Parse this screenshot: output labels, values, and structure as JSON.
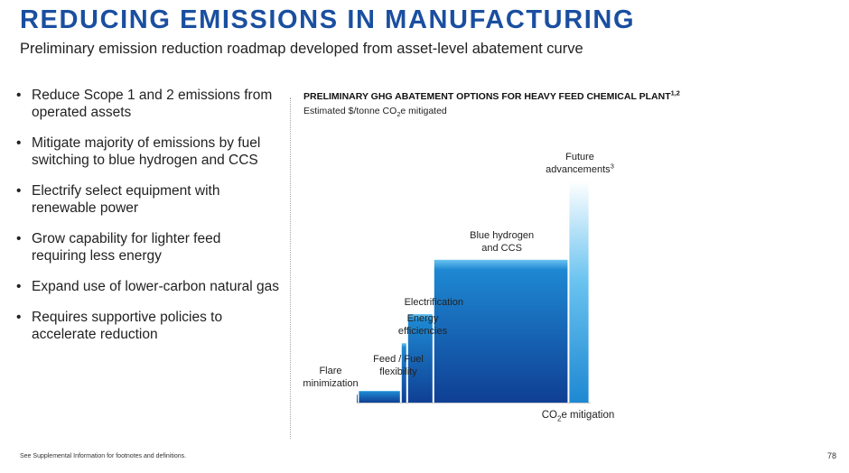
{
  "header": {
    "title": "REDUCING EMISSIONS IN MANUFACTURING",
    "subtitle": "Preliminary emission reduction roadmap developed from asset-level abatement curve"
  },
  "bullets": [
    [
      "Reduce Scope 1 and 2 emissions from",
      "operated assets"
    ],
    [
      "Mitigate majority of emissions by fuel",
      "switching to blue hydrogen and CCS"
    ],
    [
      "Electrify select equipment with",
      "renewable power"
    ],
    [
      "Grow capability for lighter feed",
      "requiring less energy"
    ],
    [
      "Expand use of lower-carbon natural gas"
    ],
    [
      "Requires supportive policies to",
      "accelerate reduction"
    ]
  ],
  "chart_data": {
    "type": "bar",
    "title": "PRELIMINARY GHG ABATEMENT OPTIONS FOR HEAVY FEED CHEMICAL PLANT",
    "title_sup": "1,2",
    "subtitle_pre": "Estimated $/tonne CO",
    "subtitle_sub": "2",
    "subtitle_post": "e mitigated",
    "xlabel_pre": "CO",
    "xlabel_sub": "2",
    "xlabel_post": "e mitigation",
    "grid": false,
    "axis_numbers_shown": false,
    "note": "Widths = relative CO2e mitigated; heights = relative $/tonne (no numeric scale shown)",
    "categories": [
      {
        "label": [
          "Flare",
          "minimization"
        ],
        "width": 1.2,
        "height": 2.6
      },
      {
        "label": [
          "Feed / Fuel",
          "flexibility"
        ],
        "width": 23.7,
        "height": 3.7
      },
      {
        "label": [
          "Energy",
          "efficiencies"
        ],
        "width": 3.5,
        "height": 18.8
      },
      {
        "label": [
          "Electrification"
        ],
        "width": 14.5,
        "height": 28.0
      },
      {
        "label": [
          "Blue hydrogen",
          "and CCS"
        ],
        "width": 74.8,
        "height": 45.2
      },
      {
        "label": [
          "Future",
          "advancements"
        ],
        "label_sup": "3",
        "width": 11.6,
        "height": 70.0
      }
    ],
    "colors": {
      "top": "#6ac3f0",
      "mid": "#1e88d2",
      "bottom": "#0f3f94"
    }
  },
  "footer": {
    "footnote": "See Supplemental Information for footnotes and definitions.",
    "page": "78"
  }
}
